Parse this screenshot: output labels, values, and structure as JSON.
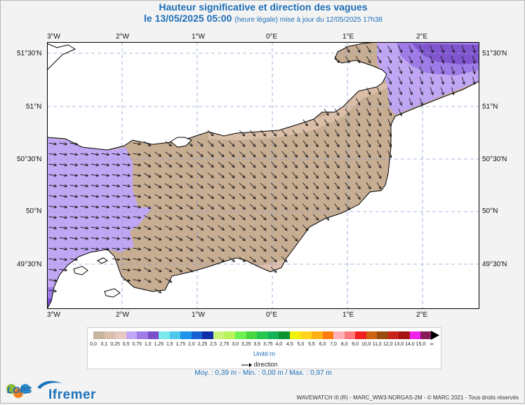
{
  "title": "Hauteur significative et direction des vagues",
  "subtitle_date": "le 13/05/2025 05:00",
  "subtitle_note": "(heure légale) mise à jour du 12/05/2025 17h38",
  "map": {
    "lon_labels": [
      "3°W",
      "2°W",
      "1°W",
      "0°E",
      "1°E",
      "2°E"
    ],
    "lat_labels": [
      "51°30'N",
      "51°N",
      "50°30'N",
      "50°N",
      "49°30'N"
    ],
    "colors": {
      "sea_low": "#c9b4a0",
      "sea_tan": "#c7ad92",
      "sea_light": "#e3c4b2",
      "lilac": "#c0a6f3",
      "purple": "#9e7be6",
      "deep_purple": "#7a4fc9",
      "land": "#ffffff",
      "coast": "#000000",
      "arrow": "#111111",
      "grid": "#8aa1d8"
    }
  },
  "legend": {
    "ticks": [
      "0,0",
      "0,1",
      "0,25",
      "0,5",
      "0,75",
      "1,0",
      "1,25",
      "1,5",
      "1,75",
      "2,0",
      "2,25",
      "2,5",
      "2,75",
      "3,0",
      "3,25",
      "3,5",
      "3,75",
      "4,0",
      "4,5",
      "5,0",
      "5,5",
      "6,0",
      "7,0",
      "8,0",
      "9,0",
      "10,0",
      "11,0",
      "12,0",
      "13,0",
      "14,0",
      "15,0",
      "∞"
    ],
    "colors": [
      "#c9b4a0",
      "#d8c0ae",
      "#e6cabf",
      "#c0a6f3",
      "#9e7be6",
      "#7a4fc9",
      "#79e9ee",
      "#4fc8ee",
      "#1e93ea",
      "#1560d2",
      "#112ea8",
      "#c7f37a",
      "#b7f35a",
      "#6ef050",
      "#46d640",
      "#25c74e",
      "#13b35a",
      "#0a9530",
      "#f1f10c",
      "#ffd41a",
      "#ffb012",
      "#ff7c0e",
      "#ffb0b8",
      "#ff7a7a",
      "#f11f1f",
      "#ce6414",
      "#9b4b10",
      "#c8241a",
      "#a51414",
      "#ef21ef",
      "#8a1e5a"
    ],
    "unit": "Unité:m"
  },
  "direction_label": "direction",
  "stats": "Moy. : 0,39 m   -   Min. : 0,00 m / Max. : 0,97 m",
  "logos": {
    "lops": "LOPS",
    "ifremer": "Ifremer"
  },
  "credit": "WAVEWATCH III (R) - MARC_WW3-NORGAS-2M - © MARC 2021 - Tous droits réservés"
}
